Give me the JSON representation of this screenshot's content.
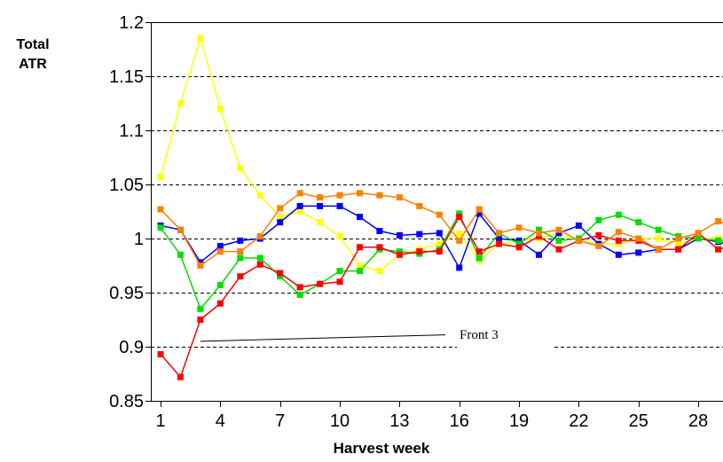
{
  "chart_data": {
    "type": "line",
    "title": "",
    "ylabel_lines": [
      "Total",
      "ATR"
    ],
    "xlabel": "Harvest week",
    "ylim": [
      0.85,
      1.2
    ],
    "xlim": [
      1,
      30
    ],
    "yticks": [
      "0.85",
      "0.9",
      "0.95",
      "1",
      "1.05",
      "1.1",
      "1.15",
      "1.2"
    ],
    "xticks": [
      "1",
      "4",
      "7",
      "10",
      "13",
      "16",
      "19",
      "22",
      "25",
      "28"
    ],
    "grid": "horizontal dashed",
    "legend": "none",
    "annotation": "Front 3",
    "x": [
      1,
      2,
      3,
      4,
      5,
      6,
      7,
      8,
      9,
      10,
      11,
      12,
      13,
      14,
      15,
      16,
      17,
      18,
      19,
      20,
      21,
      22,
      23,
      24,
      25,
      26,
      27,
      28,
      29,
      30
    ],
    "series": [
      {
        "color": "#ffff00",
        "values": [
          1.057,
          1.125,
          1.185,
          1.12,
          1.065,
          1.04,
          1.02,
          1.025,
          1.015,
          1.002,
          0.975,
          0.97,
          0.985,
          0.99,
          0.995,
          1.005,
          0.98,
          0.995,
          0.998,
          1.0,
          1.005,
          0.998,
          0.995,
          0.995,
          1.0,
          1.0,
          0.995,
          1.0,
          1.0,
          0.998
        ]
      },
      {
        "color": "#0000ff",
        "values": [
          1.012,
          1.008,
          0.978,
          0.993,
          0.998,
          1.0,
          1.015,
          1.03,
          1.03,
          1.03,
          1.02,
          1.007,
          1.003,
          1.004,
          1.005,
          0.973,
          1.023,
          1.0,
          0.998,
          0.985,
          1.005,
          1.012,
          0.995,
          0.985,
          0.987,
          0.99,
          0.99,
          1.0,
          0.997,
          0.992
        ]
      },
      {
        "color": "#00dd00",
        "values": [
          1.01,
          0.985,
          0.935,
          0.957,
          0.982,
          0.982,
          0.965,
          0.948,
          0.958,
          0.97,
          0.97,
          0.99,
          0.988,
          0.986,
          0.99,
          1.023,
          0.982,
          1.005,
          0.995,
          1.008,
          0.998,
          1.0,
          1.017,
          1.022,
          1.015,
          1.008,
          1.002,
          1.0,
          0.998,
          0.998
        ]
      },
      {
        "color": "#ff0000",
        "values": [
          0.893,
          0.872,
          0.925,
          0.94,
          0.965,
          0.976,
          0.968,
          0.955,
          0.958,
          0.96,
          0.992,
          0.992,
          0.985,
          0.988,
          0.988,
          1.02,
          0.988,
          0.995,
          0.992,
          1.002,
          0.99,
          0.998,
          1.003,
          0.998,
          0.998,
          0.99,
          0.99,
          1.005,
          0.99,
          0.995
        ]
      },
      {
        "color": "#ff8000",
        "values": [
          1.027,
          1.008,
          0.975,
          0.988,
          0.988,
          1.002,
          1.028,
          1.042,
          1.038,
          1.04,
          1.042,
          1.04,
          1.038,
          1.03,
          1.022,
          0.998,
          1.027,
          1.005,
          1.01,
          1.005,
          1.008,
          0.998,
          0.993,
          1.006,
          1.0,
          0.99,
          1.0,
          1.005,
          1.016,
          1.01
        ]
      }
    ]
  }
}
